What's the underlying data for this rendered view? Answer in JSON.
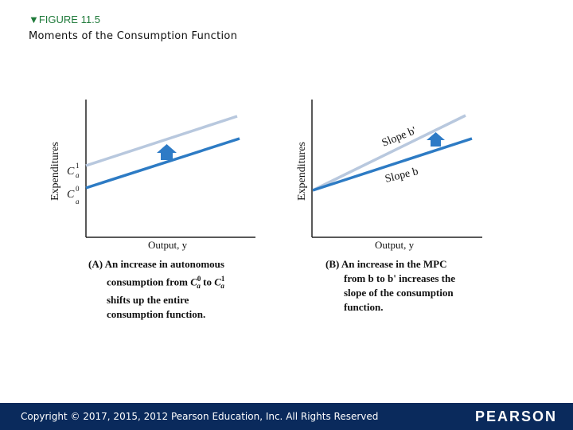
{
  "figure": {
    "label": "▼FIGURE 11.5",
    "title": "Moments of the Consumption Function"
  },
  "panel_a": {
    "y_axis_label": "Expenditures",
    "x_axis_label": "Output, y",
    "tick_upper": "C",
    "tick_upper_sup": "1",
    "tick_upper_sub": "a",
    "tick_lower": "C",
    "tick_lower_sup": "0",
    "tick_lower_sub": "a",
    "caption_line1": "(A) An increase in autonomous",
    "caption_line2_pre": "consumption from ",
    "caption_line2_c1": "C",
    "caption_line2_mid": " to ",
    "caption_line2_c2": "C",
    "sup0": "0",
    "sup1": "1",
    "sub_a": "a",
    "caption_line3": "shifts up the entire",
    "caption_line4": "consumption function."
  },
  "panel_b": {
    "y_axis_label": "Expenditures",
    "x_axis_label": "Output, y",
    "slope_upper_label": "Slope b'",
    "slope_lower_label": "Slope b",
    "caption_line1": "(B) An increase in the MPC",
    "caption_line2": "from b to b' increases the",
    "caption_line3": "slope of the consumption",
    "caption_line4": "function."
  },
  "colors": {
    "light_line": "#b8c8de",
    "dark_line": "#2d7bc4",
    "arrow": "#2e7bc6",
    "footer": "#0a2a5c"
  },
  "footer": {
    "copyright": "Copyright © 2017, 2015, 2012 Pearson Education, Inc. All Rights Reserved",
    "logo": "PEARSON"
  }
}
